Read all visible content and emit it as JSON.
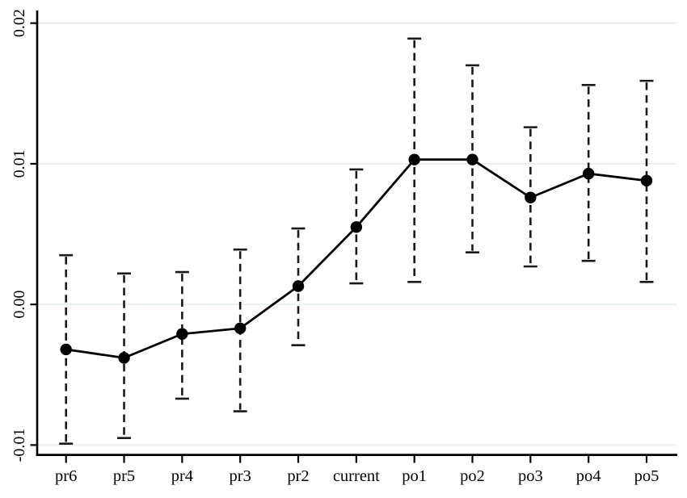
{
  "figure": {
    "background_color": "#ffffff",
    "title": "",
    "legend": "none"
  },
  "chart_data": {
    "type": "line",
    "subtype": "point-estimates-with-dashed-confidence-intervals",
    "title": "",
    "xlabel": "",
    "ylabel": "",
    "categories": [
      "pr6",
      "pr5",
      "pr4",
      "pr3",
      "pr2",
      "current",
      "po1",
      "po2",
      "po3",
      "po4",
      "po5"
    ],
    "series": [
      {
        "name": "point-estimate",
        "values": [
          -0.0032,
          -0.0038,
          -0.0021,
          -0.0017,
          0.0013,
          0.0055,
          0.0103,
          0.0103,
          0.0076,
          0.0093,
          0.0088
        ],
        "ci_low": [
          -0.0099,
          -0.0095,
          -0.0067,
          -0.0076,
          -0.0029,
          0.0015,
          0.0016,
          0.0037,
          0.0027,
          0.0031,
          0.0016
        ],
        "ci_high": [
          0.0035,
          0.0022,
          0.0023,
          0.0039,
          0.0054,
          0.0096,
          0.0189,
          0.017,
          0.0126,
          0.0156,
          0.0159
        ]
      }
    ],
    "yticks": [
      -0.01,
      0.0,
      0.01,
      0.02
    ],
    "ytick_labels": [
      "-0.01",
      "0.00",
      "0.01",
      "0.02"
    ],
    "ylim": [
      -0.0107,
      0.0209
    ],
    "grid": "horizontal-only",
    "legend_position": "none",
    "colors": {
      "line": "#000000",
      "marker": "#000000",
      "error_bar": "#1a1a1a",
      "grid": "#e9eff1",
      "axis": "#000000",
      "background": "#ffffff"
    }
  }
}
